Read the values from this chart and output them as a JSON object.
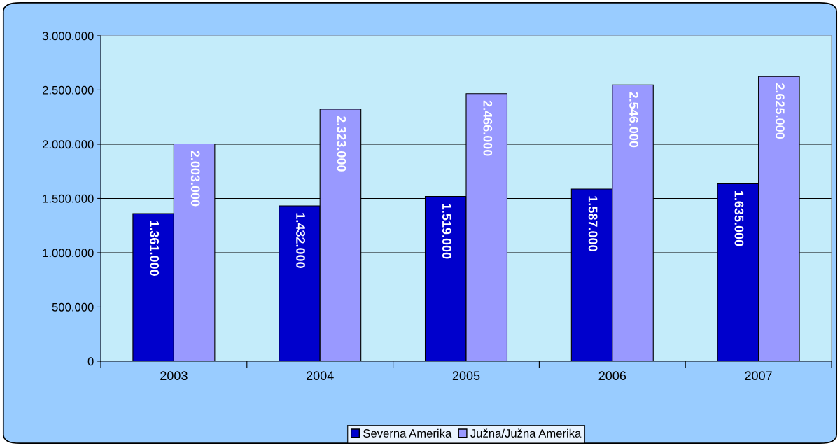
{
  "chart_data": {
    "type": "bar",
    "categories": [
      "2003",
      "2004",
      "2005",
      "2006",
      "2007"
    ],
    "series": [
      {
        "name": "Severna Amerika",
        "color": "#0000cc",
        "values": [
          1361000,
          1432000,
          1519000,
          1587000,
          1635000
        ]
      },
      {
        "name": "Južna/Južna Amerika",
        "color": "#9999ff",
        "values": [
          2003000,
          2323000,
          2466000,
          2546000,
          2625000
        ]
      }
    ],
    "value_labels": [
      [
        "1.361.000",
        "1.432.000",
        "1.519.000",
        "1.587.000",
        "1.635.000"
      ],
      [
        "2.003.000",
        "2.323.000",
        "2.466.000",
        "2.546.000",
        "2.625.000"
      ]
    ],
    "ylim": [
      0,
      3000000
    ],
    "yticks": [
      {
        "value": 0,
        "label": "0"
      },
      {
        "value": 500000,
        "label": "500.000"
      },
      {
        "value": 1000000,
        "label": "1.000.000"
      },
      {
        "value": 1500000,
        "label": "1.500.000"
      },
      {
        "value": 2000000,
        "label": "2.000.000"
      },
      {
        "value": 2500000,
        "label": "2.500.000"
      },
      {
        "value": 3000000,
        "label": "3.000.000"
      }
    ],
    "grid": "y",
    "legend": "bottom"
  }
}
